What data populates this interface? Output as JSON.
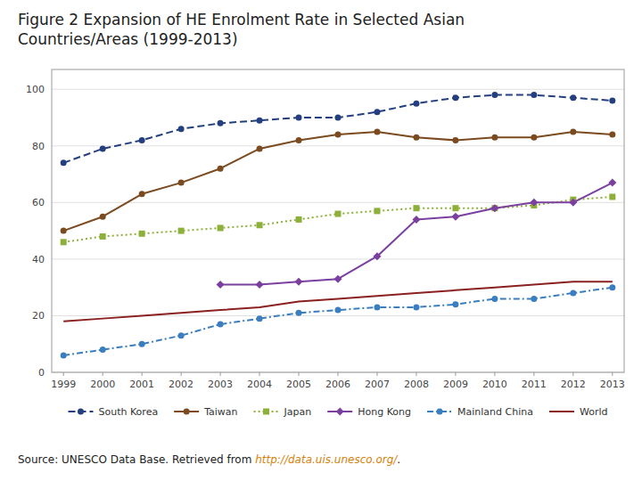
{
  "chart_data": {
    "type": "line",
    "title": "Figure 2 Expansion of HE Enrolment Rate in Selected Asian\nCountries/Areas (1999-2013)",
    "annotations": [
      "Source: UNESCO Data Base. Retrieved from ",
      "http://data.uis.unesco.org/",
      "."
    ],
    "x": [
      1999,
      2000,
      2001,
      2002,
      2003,
      2004,
      2005,
      2006,
      2007,
      2008,
      2009,
      2010,
      2011,
      2012,
      2013
    ],
    "xlim": [
      1998.7,
      2013.3
    ],
    "xticks": [
      1999,
      2000,
      2001,
      2002,
      2003,
      2004,
      2005,
      2006,
      2007,
      2008,
      2009,
      2010,
      2011,
      2012,
      2013
    ],
    "ylim": [
      0,
      107
    ],
    "yticks": [
      0,
      20,
      40,
      60,
      80,
      100
    ],
    "grid": true,
    "legend": "bottom",
    "series": [
      {
        "name": "South Korea",
        "color": "#243F7F",
        "marker": "circle",
        "line_style": "dashed",
        "values": [
          74,
          79,
          82,
          86,
          88,
          89,
          90,
          90,
          92,
          95,
          97,
          98,
          98,
          97,
          96
        ]
      },
      {
        "name": "Taiwan",
        "color": "#7B4A1E",
        "marker": "circle",
        "line_style": "solid",
        "values": [
          50,
          55,
          63,
          67,
          72,
          79,
          82,
          84,
          85,
          83,
          82,
          83,
          83,
          85,
          84
        ]
      },
      {
        "name": "Japan",
        "color": "#8DB03A",
        "marker": "square",
        "line_style": "dotted",
        "values": [
          46,
          48,
          49,
          50,
          51,
          52,
          54,
          56,
          57,
          58,
          58,
          58,
          59,
          61,
          62
        ]
      },
      {
        "name": "Hong Kong",
        "color": "#7B3FA0",
        "marker": "diamond",
        "line_style": "solid",
        "values": [
          null,
          null,
          null,
          null,
          31,
          31,
          32,
          33,
          41,
          54,
          55,
          58,
          60,
          60,
          67
        ]
      },
      {
        "name": "Mainland China",
        "color": "#3A7EBF",
        "marker": "circle",
        "line_style": "dashdot",
        "values": [
          6,
          8,
          10,
          13,
          17,
          19,
          21,
          22,
          23,
          23,
          24,
          26,
          26,
          28,
          30
        ]
      },
      {
        "name": "World",
        "color": "#8B2020",
        "marker": "none",
        "line_style": "solid",
        "values": [
          18,
          19,
          20,
          21,
          22,
          23,
          25,
          26,
          27,
          28,
          29,
          30,
          31,
          32,
          32
        ]
      }
    ]
  }
}
